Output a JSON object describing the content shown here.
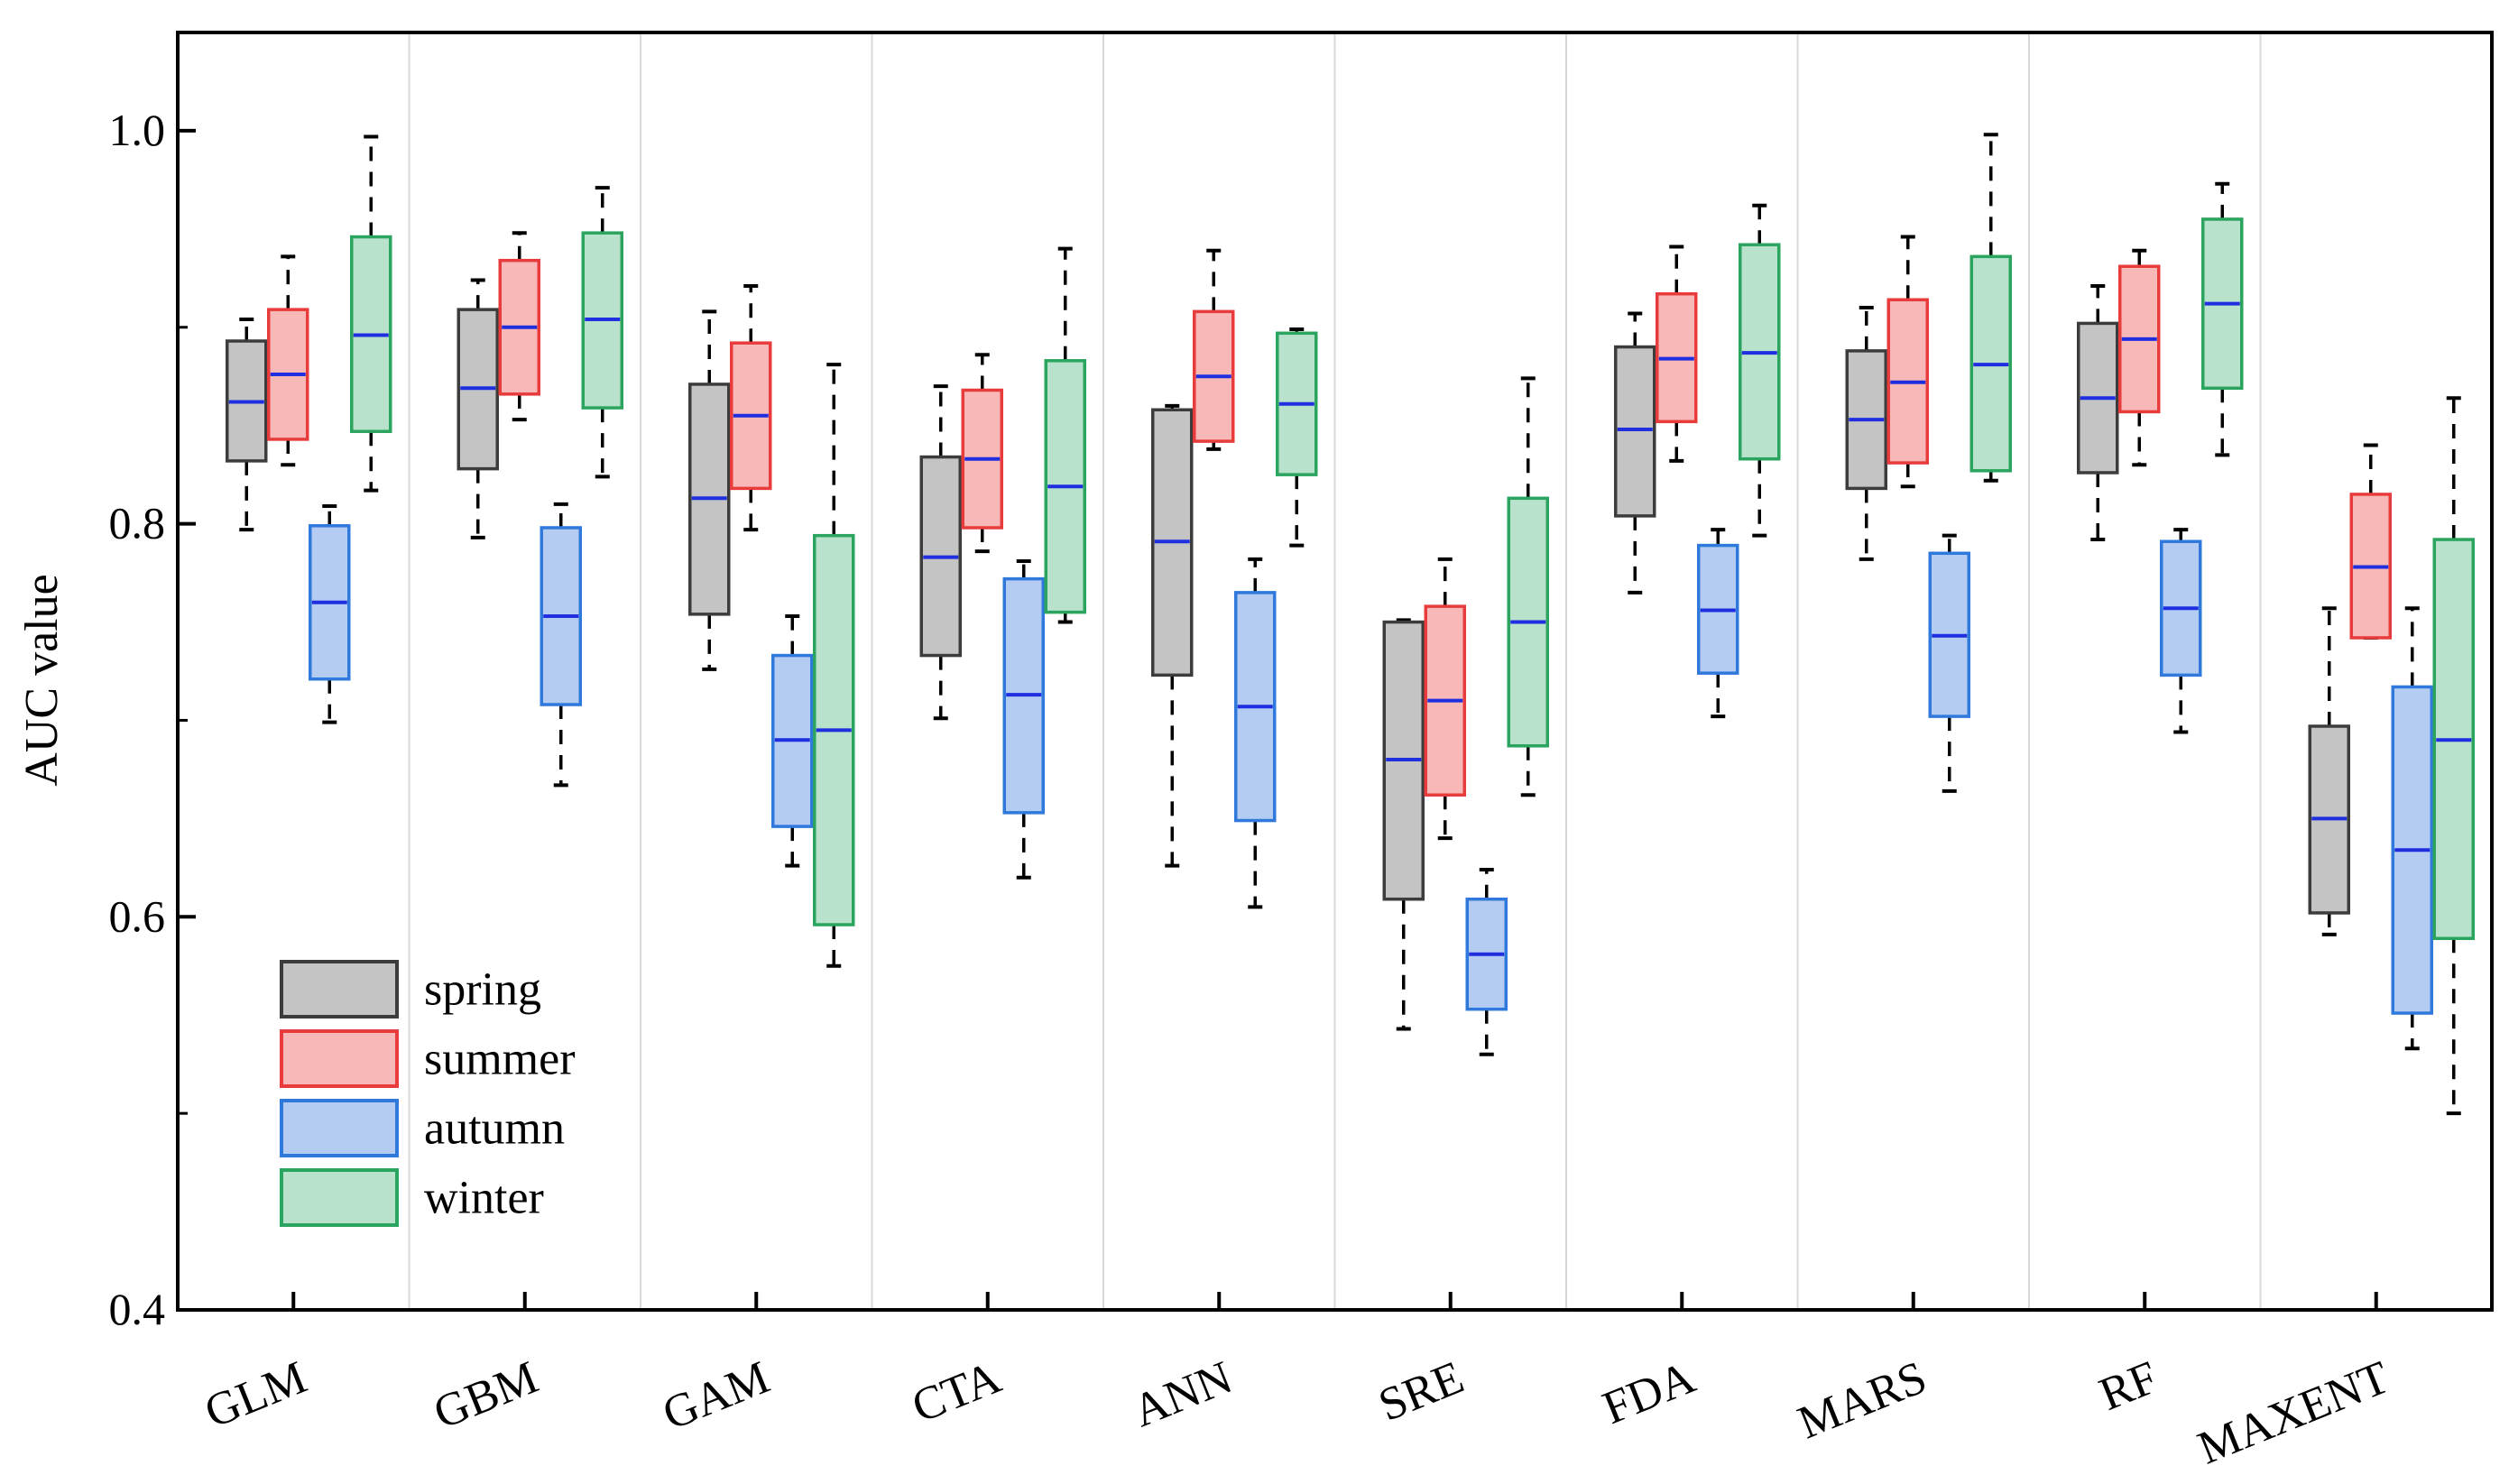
{
  "chart_data": {
    "type": "boxplot",
    "title": "",
    "xlabel": "",
    "ylabel": "AUC value",
    "ylim": [
      0.4,
      1.05
    ],
    "yticks": [
      0.4,
      0.6,
      0.8,
      1.0
    ],
    "ytick_labels": [
      "0.4",
      "0.6",
      "0.8",
      "1.0"
    ],
    "categories": [
      "GLM",
      "GBM",
      "GAM",
      "CTA",
      "ANN",
      "SRE",
      "FDA",
      "MARS",
      "RF",
      "MAXENT"
    ],
    "legend_position": "bottom-left",
    "series": [
      {
        "name": "spring",
        "fill": "#c4c4c4",
        "stroke": "#3c3c3c",
        "boxes": [
          {
            "min": 0.797,
            "q1": 0.832,
            "median": 0.862,
            "q3": 0.893,
            "max": 0.904
          },
          {
            "min": 0.793,
            "q1": 0.828,
            "median": 0.869,
            "q3": 0.909,
            "max": 0.924
          },
          {
            "min": 0.726,
            "q1": 0.754,
            "median": 0.813,
            "q3": 0.871,
            "max": 0.908
          },
          {
            "min": 0.701,
            "q1": 0.733,
            "median": 0.783,
            "q3": 0.834,
            "max": 0.87
          },
          {
            "min": 0.626,
            "q1": 0.723,
            "median": 0.791,
            "q3": 0.858,
            "max": 0.86
          },
          {
            "min": 0.543,
            "q1": 0.609,
            "median": 0.68,
            "q3": 0.75,
            "max": 0.751
          },
          {
            "min": 0.765,
            "q1": 0.804,
            "median": 0.848,
            "q3": 0.89,
            "max": 0.907
          },
          {
            "min": 0.782,
            "q1": 0.818,
            "median": 0.853,
            "q3": 0.888,
            "max": 0.91
          },
          {
            "min": 0.792,
            "q1": 0.826,
            "median": 0.864,
            "q3": 0.902,
            "max": 0.921
          },
          {
            "min": 0.591,
            "q1": 0.602,
            "median": 0.65,
            "q3": 0.697,
            "max": 0.757
          }
        ]
      },
      {
        "name": "summer",
        "fill": "#f8b8b8",
        "stroke": "#e83c3c",
        "boxes": [
          {
            "min": 0.83,
            "q1": 0.843,
            "median": 0.876,
            "q3": 0.909,
            "max": 0.936
          },
          {
            "min": 0.853,
            "q1": 0.866,
            "median": 0.9,
            "q3": 0.934,
            "max": 0.948
          },
          {
            "min": 0.797,
            "q1": 0.818,
            "median": 0.855,
            "q3": 0.892,
            "max": 0.921
          },
          {
            "min": 0.786,
            "q1": 0.798,
            "median": 0.833,
            "q3": 0.868,
            "max": 0.886
          },
          {
            "min": 0.838,
            "q1": 0.842,
            "median": 0.875,
            "q3": 0.908,
            "max": 0.939
          },
          {
            "min": 0.64,
            "q1": 0.662,
            "median": 0.71,
            "q3": 0.758,
            "max": 0.782
          },
          {
            "min": 0.832,
            "q1": 0.852,
            "median": 0.884,
            "q3": 0.917,
            "max": 0.941
          },
          {
            "min": 0.819,
            "q1": 0.831,
            "median": 0.872,
            "q3": 0.914,
            "max": 0.946
          },
          {
            "min": 0.83,
            "q1": 0.857,
            "median": 0.894,
            "q3": 0.931,
            "max": 0.939
          },
          {
            "min": 0.742,
            "q1": 0.742,
            "median": 0.778,
            "q3": 0.815,
            "max": 0.84
          }
        ]
      },
      {
        "name": "autumn",
        "fill": "#b4ccf2",
        "stroke": "#2f78dc",
        "boxes": [
          {
            "min": 0.699,
            "q1": 0.721,
            "median": 0.76,
            "q3": 0.799,
            "max": 0.809
          },
          {
            "min": 0.667,
            "q1": 0.708,
            "median": 0.753,
            "q3": 0.798,
            "max": 0.81
          },
          {
            "min": 0.626,
            "q1": 0.646,
            "median": 0.69,
            "q3": 0.733,
            "max": 0.753
          },
          {
            "min": 0.62,
            "q1": 0.653,
            "median": 0.713,
            "q3": 0.772,
            "max": 0.781
          },
          {
            "min": 0.605,
            "q1": 0.649,
            "median": 0.707,
            "q3": 0.765,
            "max": 0.782
          },
          {
            "min": 0.53,
            "q1": 0.553,
            "median": 0.581,
            "q3": 0.609,
            "max": 0.624
          },
          {
            "min": 0.702,
            "q1": 0.724,
            "median": 0.756,
            "q3": 0.789,
            "max": 0.797
          },
          {
            "min": 0.664,
            "q1": 0.702,
            "median": 0.743,
            "q3": 0.785,
            "max": 0.794
          },
          {
            "min": 0.694,
            "q1": 0.723,
            "median": 0.757,
            "q3": 0.791,
            "max": 0.797
          },
          {
            "min": 0.533,
            "q1": 0.551,
            "median": 0.634,
            "q3": 0.717,
            "max": 0.757
          }
        ]
      },
      {
        "name": "winter",
        "fill": "#b8e2cc",
        "stroke": "#2aa45e",
        "boxes": [
          {
            "min": 0.817,
            "q1": 0.847,
            "median": 0.896,
            "q3": 0.946,
            "max": 0.997
          },
          {
            "min": 0.824,
            "q1": 0.859,
            "median": 0.904,
            "q3": 0.948,
            "max": 0.971
          },
          {
            "min": 0.575,
            "q1": 0.596,
            "median": 0.695,
            "q3": 0.794,
            "max": 0.881
          },
          {
            "min": 0.75,
            "q1": 0.755,
            "median": 0.819,
            "q3": 0.883,
            "max": 0.94
          },
          {
            "min": 0.789,
            "q1": 0.825,
            "median": 0.861,
            "q3": 0.897,
            "max": 0.899
          },
          {
            "min": 0.662,
            "q1": 0.687,
            "median": 0.75,
            "q3": 0.813,
            "max": 0.874
          },
          {
            "min": 0.794,
            "q1": 0.833,
            "median": 0.887,
            "q3": 0.942,
            "max": 0.962
          },
          {
            "min": 0.822,
            "q1": 0.827,
            "median": 0.881,
            "q3": 0.936,
            "max": 0.998
          },
          {
            "min": 0.835,
            "q1": 0.869,
            "median": 0.912,
            "q3": 0.955,
            "max": 0.973
          },
          {
            "min": 0.5,
            "q1": 0.589,
            "median": 0.69,
            "q3": 0.792,
            "max": 0.864
          }
        ]
      }
    ]
  }
}
